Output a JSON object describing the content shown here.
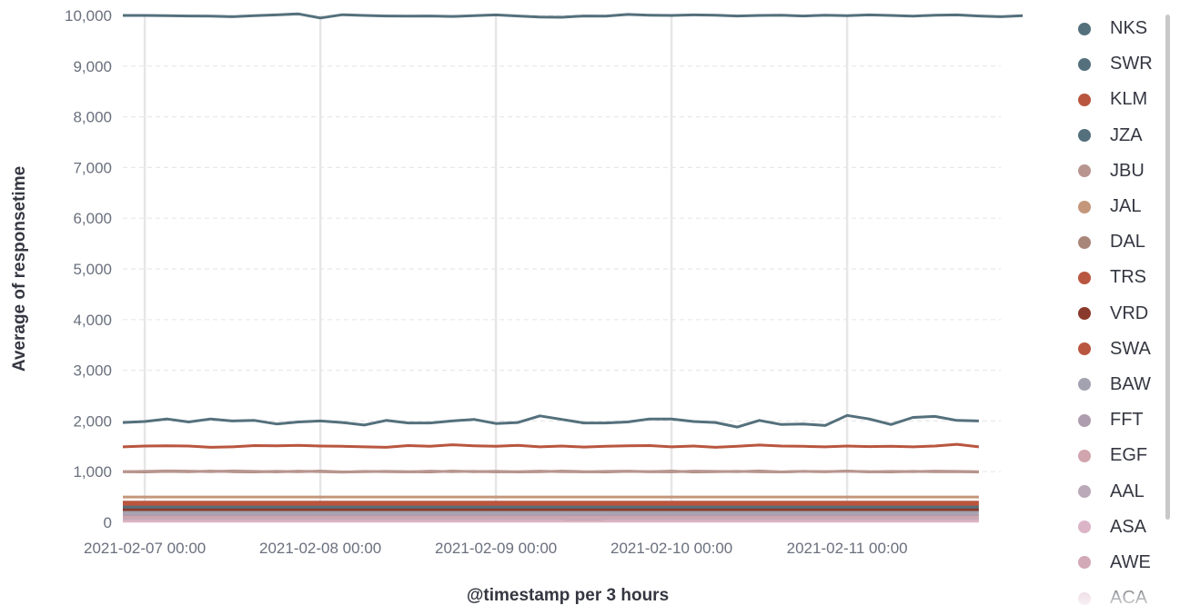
{
  "chart_data": {
    "type": "line",
    "xlabel": "@timestamp per 3 hours",
    "ylabel": "Average of responsetime",
    "ylim": [
      0,
      10000
    ],
    "yticks": [
      0,
      1000,
      2000,
      3000,
      4000,
      5000,
      6000,
      7000,
      8000,
      9000,
      10000
    ],
    "ytick_labels": [
      "0",
      "1,000",
      "2,000",
      "3,000",
      "4,000",
      "5,000",
      "6,000",
      "7,000",
      "8,000",
      "9,000",
      "10,000"
    ],
    "x_start": "2021-02-06 21:00",
    "x_interval_hours": 3,
    "xlim": [
      "2021-02-06 21:00",
      "2021-02-11 21:00"
    ],
    "xticks": [
      "2021-02-07 00:00",
      "2021-02-08 00:00",
      "2021-02-09 00:00",
      "2021-02-10 00:00",
      "2021-02-11 00:00"
    ],
    "grid": {
      "horizontal": "dashed",
      "vertical": "solid"
    },
    "legend_position": "right",
    "series": [
      {
        "name": "NKS",
        "color": "#54707c",
        "values": [
          10000,
          10000,
          9995,
          9990,
          9985,
          9975,
          9995,
          10010,
          10030,
          9950,
          10015,
          10000,
          9990,
          9985,
          9990,
          9980,
          9995,
          10010,
          9990,
          9970,
          9965,
          9990,
          9985,
          10020,
          10005,
          10000,
          10010,
          10005,
          9990,
          10000,
          10005,
          9990,
          10005,
          9995,
          10010,
          10000,
          9985,
          10005,
          10010,
          9990,
          9975,
          9995
        ]
      },
      {
        "name": "SWR",
        "color": "#54707c",
        "values": [
          1970,
          1990,
          2040,
          1980,
          2040,
          2000,
          2010,
          1940,
          1980,
          2000,
          1970,
          1920,
          2010,
          1960,
          1960,
          2000,
          2030,
          1950,
          1970,
          2100,
          2030,
          1960,
          1960,
          1980,
          2040,
          2040,
          1990,
          1970,
          1880,
          2010,
          1930,
          1940,
          1910,
          2110,
          2040,
          1930,
          2070,
          2090,
          2010,
          2000
        ]
      },
      {
        "name": "KLM",
        "color": "#b9563f",
        "values": [
          1490,
          1505,
          1510,
          1505,
          1480,
          1490,
          1515,
          1510,
          1520,
          1505,
          1500,
          1490,
          1480,
          1515,
          1500,
          1530,
          1510,
          1500,
          1520,
          1490,
          1505,
          1485,
          1500,
          1510,
          1515,
          1490,
          1505,
          1480,
          1500,
          1525,
          1505,
          1500,
          1490,
          1505,
          1495,
          1500,
          1490,
          1505,
          1540,
          1490
        ]
      },
      {
        "name": "JZA",
        "color": "#54707c",
        "values": [
          300,
          300,
          300,
          300,
          300,
          300,
          300,
          300,
          300,
          300,
          300,
          300,
          300,
          300,
          300,
          300,
          300,
          300,
          300,
          300,
          300,
          300,
          300,
          300,
          300,
          300,
          300,
          300,
          300,
          300,
          300,
          300,
          300,
          300,
          300,
          300,
          300,
          300,
          300,
          300
        ]
      },
      {
        "name": "JBU",
        "color": "#b8958f",
        "values": [
          1000,
          1005,
          1015,
          1010,
          1000,
          1015,
          1005,
          995,
          1010,
          1000,
          990,
          1005,
          1000,
          995,
          1010,
          1000,
          1005,
          995,
          1000,
          1010,
          1000,
          995,
          1005,
          1010,
          1000,
          995,
          1010,
          1005,
          1000,
          1015,
          995,
          1005,
          1000,
          1010,
          995,
          1005,
          1000,
          1010,
          1005,
          1000
        ]
      },
      {
        "name": "JAL",
        "color": "#c4977b",
        "values": [
          500,
          500,
          500,
          500,
          500,
          500,
          500,
          500,
          500,
          500,
          500,
          500,
          500,
          500,
          500,
          500,
          500,
          500,
          500,
          500,
          500,
          500,
          500,
          500,
          500,
          500,
          500,
          500,
          500,
          500,
          500,
          500,
          500,
          500,
          500,
          500,
          500,
          500,
          500,
          500
        ]
      },
      {
        "name": "DAL",
        "color": "#a9867a",
        "values": [
          1000,
          995,
          1005,
          1000,
          1010,
          1000,
          995,
          1005,
          1000,
          1010,
          995,
          1000,
          1005,
          1000,
          995,
          1010,
          1000,
          1005,
          995,
          1000,
          1010,
          1000,
          995,
          1005,
          1000,
          1010,
          995,
          1000,
          1005,
          1000,
          995,
          1005,
          1000,
          1010,
          1000,
          995,
          1005,
          1000,
          1000,
          995
        ]
      },
      {
        "name": "TRS",
        "color": "#b9563f",
        "values": [
          400,
          400,
          400,
          400,
          400,
          400,
          400,
          400,
          400,
          400,
          400,
          400,
          400,
          400,
          400,
          400,
          400,
          400,
          400,
          400,
          400,
          400,
          400,
          400,
          400,
          400,
          400,
          400,
          400,
          400,
          400,
          400,
          400,
          400,
          400,
          400,
          400,
          400,
          400,
          400
        ]
      },
      {
        "name": "VRD",
        "color": "#8a3a2c",
        "values": [
          250,
          250,
          250,
          250,
          250,
          250,
          250,
          250,
          250,
          250,
          250,
          250,
          250,
          250,
          250,
          250,
          250,
          250,
          250,
          250,
          250,
          250,
          250,
          250,
          250,
          250,
          250,
          250,
          250,
          250,
          250,
          250,
          250,
          250,
          250,
          250,
          250,
          250,
          250,
          250
        ]
      },
      {
        "name": "SWA",
        "color": "#b9563f",
        "values": [
          350,
          350,
          350,
          350,
          350,
          350,
          350,
          350,
          350,
          350,
          350,
          350,
          350,
          350,
          350,
          350,
          350,
          350,
          350,
          350,
          350,
          350,
          350,
          350,
          350,
          350,
          350,
          350,
          350,
          350,
          350,
          350,
          350,
          350,
          350,
          350,
          350,
          350,
          350,
          350
        ]
      },
      {
        "name": "BAW",
        "color": "#a3a2b0",
        "values": [
          200,
          200,
          200,
          200,
          200,
          200,
          200,
          200,
          200,
          200,
          200,
          200,
          200,
          200,
          200,
          200,
          200,
          200,
          200,
          200,
          200,
          200,
          200,
          200,
          200,
          200,
          200,
          200,
          200,
          200,
          200,
          200,
          200,
          200,
          200,
          200,
          200,
          200,
          200,
          200
        ]
      },
      {
        "name": "FFT",
        "color": "#ae9dae",
        "values": [
          150,
          150,
          150,
          150,
          150,
          150,
          150,
          150,
          150,
          150,
          150,
          150,
          150,
          150,
          150,
          150,
          150,
          150,
          150,
          150,
          150,
          150,
          150,
          150,
          150,
          150,
          150,
          150,
          150,
          150,
          150,
          150,
          150,
          150,
          150,
          150,
          150,
          150,
          150,
          150
        ]
      },
      {
        "name": "EGF",
        "color": "#d1a5ae",
        "values": [
          100,
          100,
          100,
          100,
          100,
          100,
          100,
          100,
          100,
          100,
          100,
          100,
          100,
          100,
          100,
          100,
          100,
          100,
          100,
          100,
          100,
          100,
          100,
          100,
          100,
          100,
          100,
          100,
          100,
          100,
          100,
          100,
          100,
          100,
          100,
          100,
          100,
          100,
          100,
          100
        ]
      },
      {
        "name": "AAL",
        "color": "#bba8b9",
        "values": [
          80,
          80,
          80,
          80,
          80,
          80,
          80,
          80,
          80,
          80,
          80,
          80,
          80,
          80,
          80,
          80,
          80,
          80,
          80,
          80,
          80,
          80,
          80,
          80,
          80,
          80,
          80,
          80,
          80,
          80,
          80,
          80,
          80,
          80,
          80,
          80,
          80,
          80,
          80,
          80
        ]
      },
      {
        "name": "ASA",
        "color": "#dcb4c8",
        "values": [
          60,
          60,
          60,
          60,
          60,
          60,
          60,
          60,
          60,
          60,
          60,
          60,
          60,
          60,
          60,
          60,
          60,
          60,
          60,
          60,
          60,
          140,
          60,
          60,
          60,
          60,
          60,
          60,
          60,
          60,
          60,
          60,
          60,
          60,
          60,
          60,
          60,
          60,
          60,
          60
        ]
      },
      {
        "name": "AWE",
        "color": "#d2a9b6",
        "values": [
          40,
          40,
          40,
          40,
          40,
          40,
          40,
          40,
          40,
          40,
          40,
          40,
          40,
          40,
          40,
          40,
          40,
          40,
          40,
          40,
          40,
          40,
          40,
          40,
          40,
          40,
          40,
          40,
          40,
          40,
          40,
          40,
          40,
          40,
          40,
          40,
          40,
          40,
          40,
          40
        ]
      },
      {
        "name": "ACA",
        "color": "#e0c4d2",
        "values": [
          20,
          20,
          20,
          20,
          20,
          20,
          20,
          20,
          20,
          20,
          20,
          20,
          20,
          20,
          20,
          20,
          20,
          20,
          20,
          20,
          20,
          20,
          20,
          20,
          20,
          20,
          20,
          20,
          20,
          20,
          20,
          20,
          20,
          20,
          20,
          20,
          20,
          20,
          20,
          20
        ]
      }
    ]
  }
}
